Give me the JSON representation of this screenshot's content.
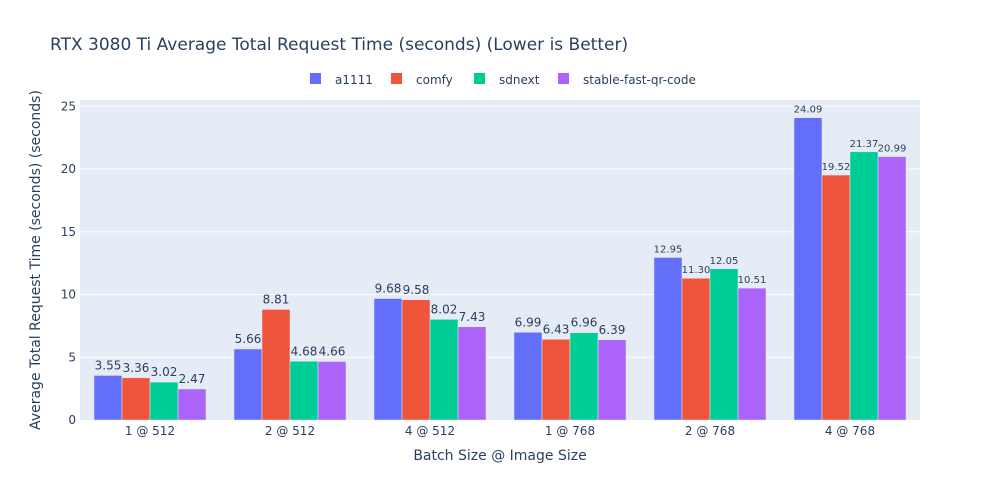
{
  "chart_data": {
    "type": "bar",
    "title": "RTX 3080 Ti Average Total Request Time (seconds) (Lower is Better)",
    "xlabel": "Batch Size @ Image Size",
    "ylabel": "Average Total Request Time (seconds) (seconds)",
    "ylim": [
      0,
      25.5
    ],
    "yticks": [
      0,
      5,
      10,
      15,
      20,
      25
    ],
    "grid": true,
    "legend_position": "top-center",
    "categories": [
      "1 @ 512",
      "2 @ 512",
      "4 @ 512",
      "1 @ 768",
      "2 @ 768",
      "4 @ 768"
    ],
    "series": [
      {
        "name": "a1111",
        "color": "#636efa",
        "values": [
          3.55,
          5.66,
          9.68,
          6.99,
          12.95,
          24.09
        ],
        "labels": [
          "3.55",
          "5.66",
          "9.68",
          "6.99",
          "12.95",
          "24.09"
        ]
      },
      {
        "name": "comfy",
        "color": "#ef553b",
        "values": [
          3.36,
          8.81,
          9.58,
          6.43,
          11.3,
          19.52
        ],
        "labels": [
          "3.36",
          "8.81",
          "9.58",
          "6.43",
          "11.30",
          "19.52"
        ]
      },
      {
        "name": "sdnext",
        "color": "#00cc96",
        "values": [
          3.02,
          4.68,
          8.02,
          6.96,
          12.05,
          21.37
        ],
        "labels": [
          "3.02",
          "4.68",
          "8.02",
          "6.96",
          "12.05",
          "21.37"
        ]
      },
      {
        "name": "stable-fast-qr-code",
        "color": "#ab63fa",
        "values": [
          2.47,
          4.66,
          7.43,
          6.39,
          10.51,
          20.99
        ],
        "labels": [
          "2.47",
          "4.66",
          "7.43",
          "6.39",
          "10.51",
          "20.99"
        ]
      }
    ]
  }
}
